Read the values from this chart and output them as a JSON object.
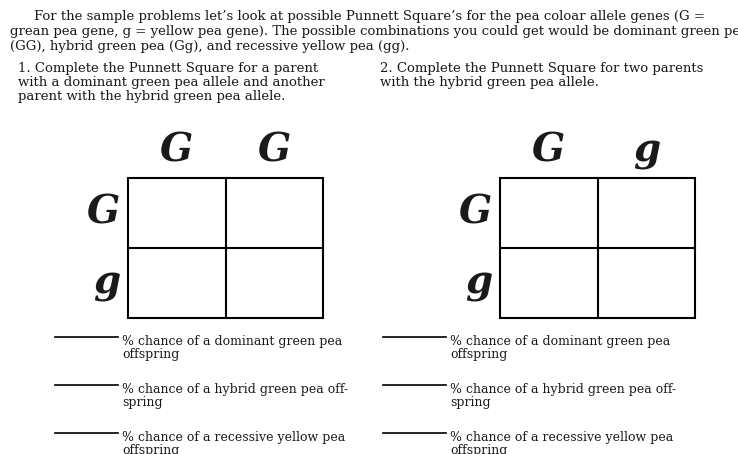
{
  "background_color": "#ffffff",
  "text_color": "#1a1a1a",
  "line_color": "#000000",
  "intro_line1": "For the sample problems let’s look at possible Punnett Square’s for the pea coloar allele genes (G =",
  "intro_line2": "grean pea gene, g = yellow pea gene). The possible combinations you could get would be dominant green pea",
  "intro_line3": "(GG), hybrid green pea (Gg), and recessive yellow pea (gg).",
  "problem1_title_lines": [
    "1. Complete the Punnett Square for a parent",
    "with a dominant green pea allele and another",
    "parent with the hybrid green pea allele."
  ],
  "problem2_title_lines": [
    "2. Complete the Punnett Square for two parents",
    "with the hybrid green pea allele."
  ],
  "p1_col_labels": [
    "G",
    "G"
  ],
  "p1_row_labels": [
    "G",
    "g"
  ],
  "p2_col_labels": [
    "G",
    "g"
  ],
  "p2_row_labels": [
    "G",
    "g"
  ],
  "blank_label_1": "% chance of a dominant green pea\noffspring",
  "blank_label_2": "% chance of a hybrid green pea off-\nspring",
  "blank_label_3": "% chance of a recessive yellow pea\noffspring",
  "intro_fontsize": 9.5,
  "title_fontsize": 9.5,
  "small_fontsize": 9.0,
  "large_label_fontsize": 28
}
